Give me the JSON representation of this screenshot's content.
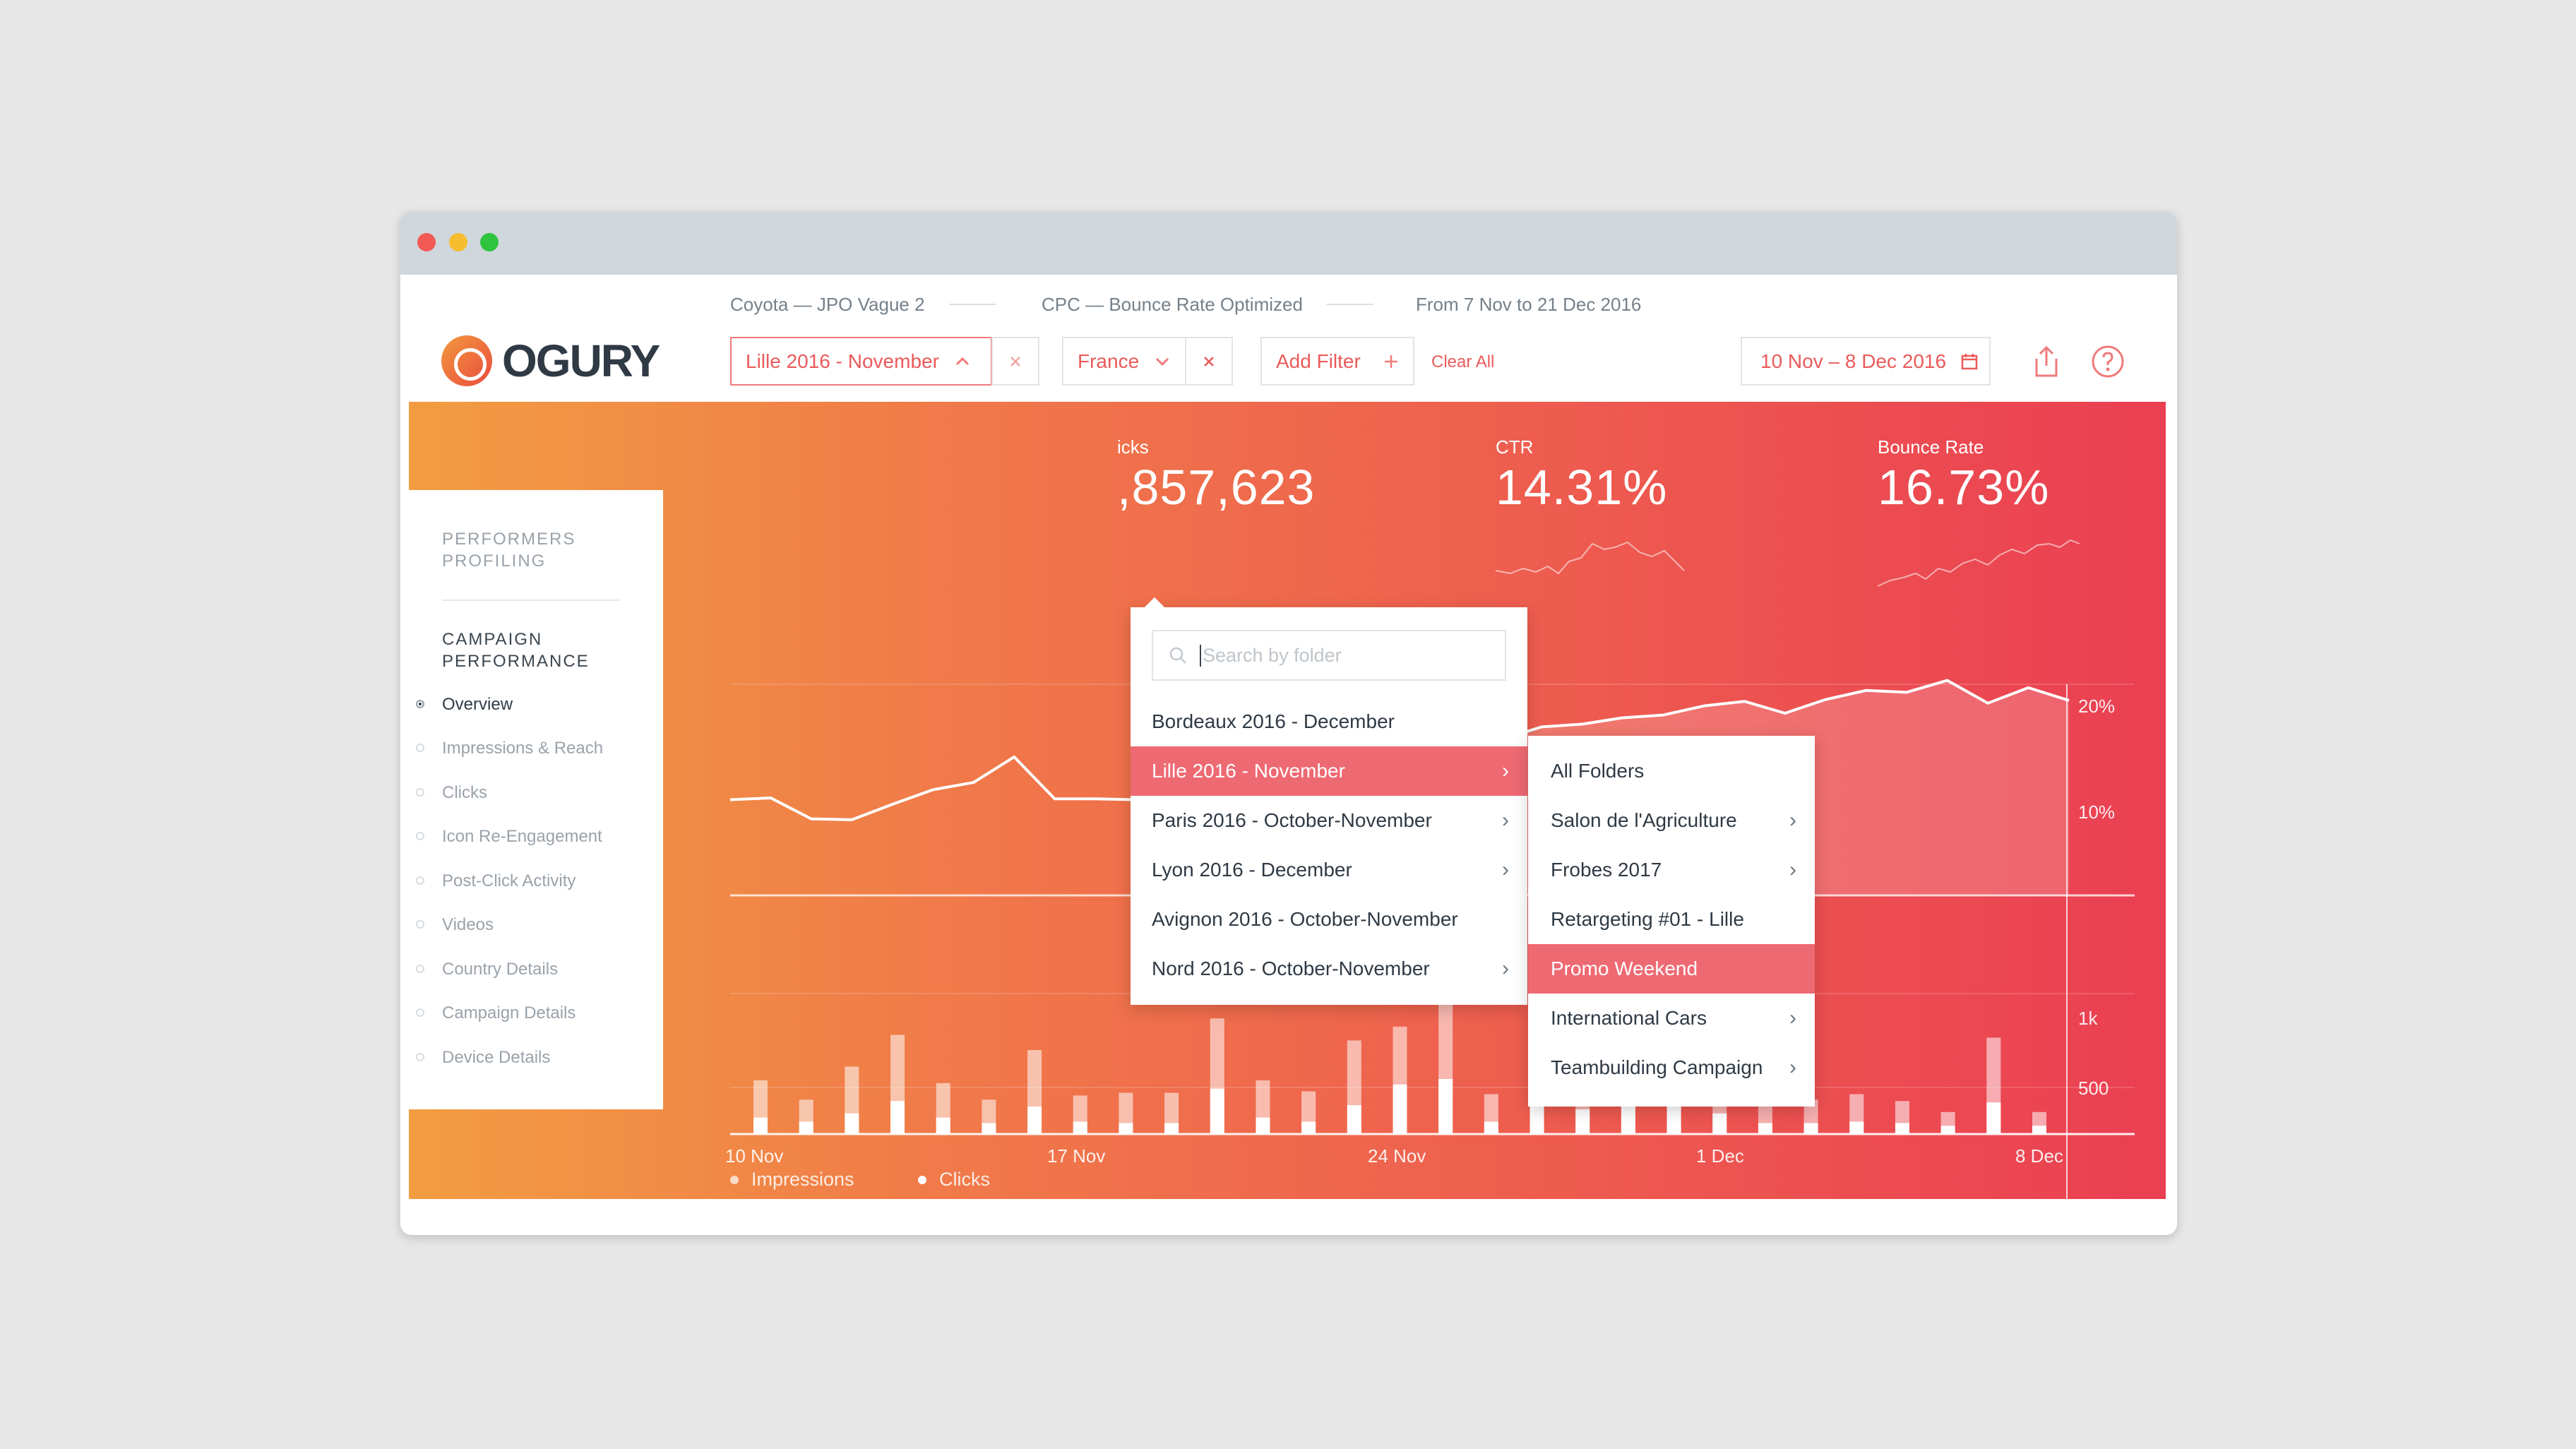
{
  "brand": {
    "name": "OGURY"
  },
  "breadcrumbs": [
    "Coyota — JPO Vague 2",
    "CPC — Bounce Rate Optimized",
    "From 7 Nov to 21 Dec 2016"
  ],
  "filters": {
    "folder": {
      "value": "Lille 2016 - November",
      "icon": "chevron-up-icon"
    },
    "country": {
      "value": "France",
      "icon": "chevron-down-icon"
    },
    "add_filter": "Add Filter",
    "clear_all": "Clear All",
    "date_range": "10 Nov – 8 Dec 2016"
  },
  "header_icons": [
    "share-icon",
    "help-icon"
  ],
  "sidebar": {
    "section1": "PERFORMERS PROFILING",
    "section1_lines": [
      "PERFORMERS",
      "PROFILING"
    ],
    "section2_lines": [
      "CAMPAIGN",
      "PERFORMANCE"
    ],
    "items": [
      {
        "label": "Overview",
        "active": true
      },
      {
        "label": "Impressions & Reach",
        "active": false
      },
      {
        "label": "Clicks",
        "active": false
      },
      {
        "label": "Icon Re-Engagement",
        "active": false
      },
      {
        "label": "Post-Click Activity",
        "active": false
      },
      {
        "label": "Videos",
        "active": false
      },
      {
        "label": "Country Details",
        "active": false
      },
      {
        "label": "Campaign Details",
        "active": false
      },
      {
        "label": "Device Details",
        "active": false
      }
    ]
  },
  "kpis": [
    {
      "label": "icks",
      "value": ",857,623"
    },
    {
      "label": "CTR",
      "value": "14.31%"
    },
    {
      "label": "Bounce Rate",
      "value": "16.73%"
    }
  ],
  "dropdown": {
    "search_placeholder": "Search by folder",
    "items": [
      {
        "label": "Bordeaux 2016 - December",
        "has_children": false,
        "selected": false
      },
      {
        "label": "Lille 2016 - November",
        "has_children": true,
        "selected": true
      },
      {
        "label": "Paris 2016 - October-November",
        "has_children": true,
        "selected": false
      },
      {
        "label": "Lyon 2016 - December",
        "has_children": true,
        "selected": false
      },
      {
        "label": "Avignon 2016 - October-November",
        "has_children": false,
        "selected": false
      },
      {
        "label": "Nord 2016 - October-November",
        "has_children": true,
        "selected": false
      }
    ]
  },
  "submenu": {
    "items": [
      {
        "label": "All Folders",
        "has_children": false,
        "selected": false
      },
      {
        "label": "Salon de l'Agriculture",
        "has_children": true,
        "selected": false
      },
      {
        "label": "Frobes 2017",
        "has_children": true,
        "selected": false
      },
      {
        "label": "Retargeting #01 - Lille",
        "has_children": false,
        "selected": false
      },
      {
        "label": "Promo Weekend",
        "has_children": false,
        "selected": true
      },
      {
        "label": "International Cars",
        "has_children": true,
        "selected": false
      },
      {
        "label": "Teambuilding Campaign",
        "has_children": true,
        "selected": false
      }
    ]
  },
  "colors": {
    "accent": "#ea5a5a",
    "selected": "#ee6a73",
    "gradient_start": "#f29d42",
    "gradient_end": "#ea3f52"
  },
  "chart_data": [
    {
      "type": "line",
      "title": "",
      "y_tick_labels": [
        "20%",
        "10%"
      ],
      "ylim": [
        0,
        25
      ],
      "x": [
        1,
        2,
        3,
        4,
        5,
        6,
        7,
        8,
        9,
        10,
        11,
        12,
        13,
        14,
        15,
        16,
        17,
        18,
        19,
        20,
        21,
        22,
        23,
        24,
        25,
        26,
        27,
        28,
        29,
        30,
        31,
        32,
        33,
        34
      ],
      "values": [
        10.5,
        10.7,
        8.4,
        8.3,
        10.0,
        11.6,
        12.4,
        15.2,
        10.6,
        10.6,
        10.5,
        11.4,
        14.2,
        12.1,
        13.5,
        14.8,
        13.6,
        15.1,
        16.4,
        17.1,
        18.5,
        18.8,
        19.5,
        19.8,
        20.8,
        21.3,
        20.0,
        21.5,
        22.5,
        22.3,
        23.6,
        21.1,
        22.8,
        21.4
      ]
    },
    {
      "type": "bar",
      "title": "",
      "x_tick_labels": [
        "10 Nov",
        "17 Nov",
        "24 Nov",
        "1 Dec",
        "8 Dec"
      ],
      "y_tick_labels": [
        "1k",
        "500"
      ],
      "ylim": [
        0,
        1000
      ],
      "series": [
        {
          "name": "Impressions",
          "values": [
            390,
            250,
            490,
            720,
            370,
            250,
            610,
            280,
            300,
            300,
            840,
            390,
            310,
            680,
            780,
            950,
            290,
            830,
            490,
            720,
            610,
            460,
            240,
            250,
            290,
            240,
            160,
            700,
            160
          ]
        },
        {
          "name": "Clicks",
          "values": [
            120,
            90,
            150,
            240,
            120,
            80,
            200,
            90,
            80,
            80,
            330,
            120,
            90,
            210,
            360,
            400,
            90,
            380,
            180,
            240,
            210,
            150,
            80,
            80,
            90,
            80,
            60,
            230,
            60
          ]
        }
      ]
    }
  ]
}
